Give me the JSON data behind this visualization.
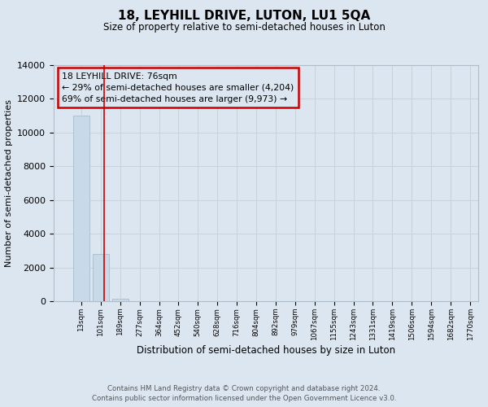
{
  "title": "18, LEYHILL DRIVE, LUTON, LU1 5QA",
  "subtitle": "Size of property relative to semi-detached houses in Luton",
  "xlabel": "Distribution of semi-detached houses by size in Luton",
  "ylabel": "Number of semi-detached properties",
  "footer_line1": "Contains HM Land Registry data © Crown copyright and database right 2024.",
  "footer_line2": "Contains public sector information licensed under the Open Government Licence v3.0.",
  "bin_labels": [
    "13sqm",
    "101sqm",
    "189sqm",
    "277sqm",
    "364sqm",
    "452sqm",
    "540sqm",
    "628sqm",
    "716sqm",
    "804sqm",
    "892sqm",
    "979sqm",
    "1067sqm",
    "1155sqm",
    "1243sqm",
    "1331sqm",
    "1419sqm",
    "1506sqm",
    "1594sqm",
    "1682sqm",
    "1770sqm"
  ],
  "bar_values": [
    11000,
    2800,
    130,
    0,
    0,
    0,
    0,
    0,
    0,
    0,
    0,
    0,
    0,
    0,
    0,
    0,
    0,
    0,
    0,
    0
  ],
  "bar_color": "#c8d9e8",
  "bar_edge_color": "#a8bece",
  "ylim": [
    0,
    14000
  ],
  "yticks": [
    0,
    2000,
    4000,
    6000,
    8000,
    10000,
    12000,
    14000
  ],
  "property_line_x": 1.18,
  "property_line_color": "#cc0000",
  "annotation_text": "18 LEYHILL DRIVE: 76sqm\n← 29% of semi-detached houses are smaller (4,204)\n69% of semi-detached houses are larger (9,973) →",
  "annotation_box_color": "#cc0000",
  "grid_color": "#c8d4dc",
  "background_color": "#dce6f0"
}
